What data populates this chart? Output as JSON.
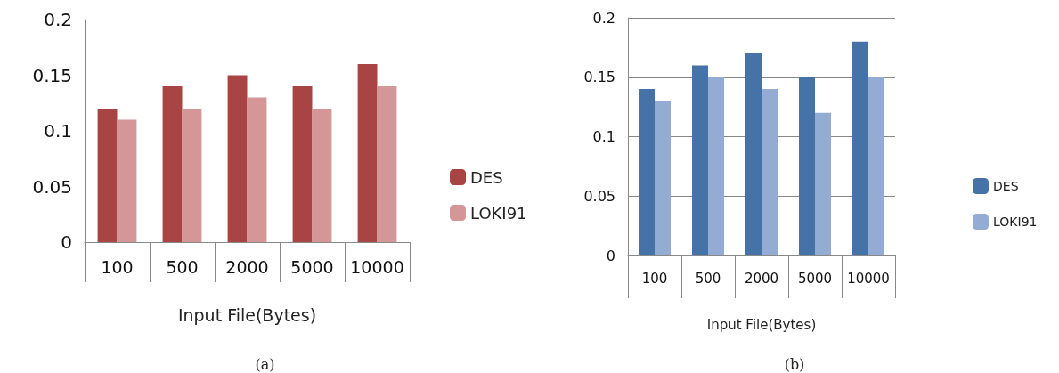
{
  "chart_data": [
    {
      "type": "bar",
      "xlabel": "Input File(Bytes)",
      "categories": [
        "100",
        "500",
        "2000",
        "5000",
        "10000"
      ],
      "series": [
        {
          "name": "DES",
          "color": "#a84444",
          "values": [
            0.12,
            0.14,
            0.15,
            0.14,
            0.16
          ]
        },
        {
          "name": "LOKI91",
          "color": "#d49696",
          "values": [
            0.11,
            0.12,
            0.13,
            0.12,
            0.14
          ]
        }
      ],
      "ylim": [
        0,
        0.2
      ],
      "yticks": [
        0,
        0.05,
        0.1,
        0.15,
        0.2
      ],
      "grid": false,
      "legend": "right",
      "annotations": [
        "(a)"
      ]
    },
    {
      "type": "bar",
      "xlabel": "Input File(Bytes)",
      "categories": [
        "100",
        "500",
        "2000",
        "5000",
        "10000"
      ],
      "series": [
        {
          "name": "DES",
          "color": "#4572a7",
          "values": [
            0.14,
            0.16,
            0.17,
            0.15,
            0.18
          ]
        },
        {
          "name": "LOKI91",
          "color": "#94abd4",
          "values": [
            0.13,
            0.15,
            0.14,
            0.12,
            0.15
          ]
        }
      ],
      "ylim": [
        0,
        0.2
      ],
      "yticks": [
        0,
        0.05,
        0.1,
        0.15,
        0.2
      ],
      "grid": "y",
      "legend": "right",
      "annotations": [
        "(b)"
      ]
    }
  ]
}
